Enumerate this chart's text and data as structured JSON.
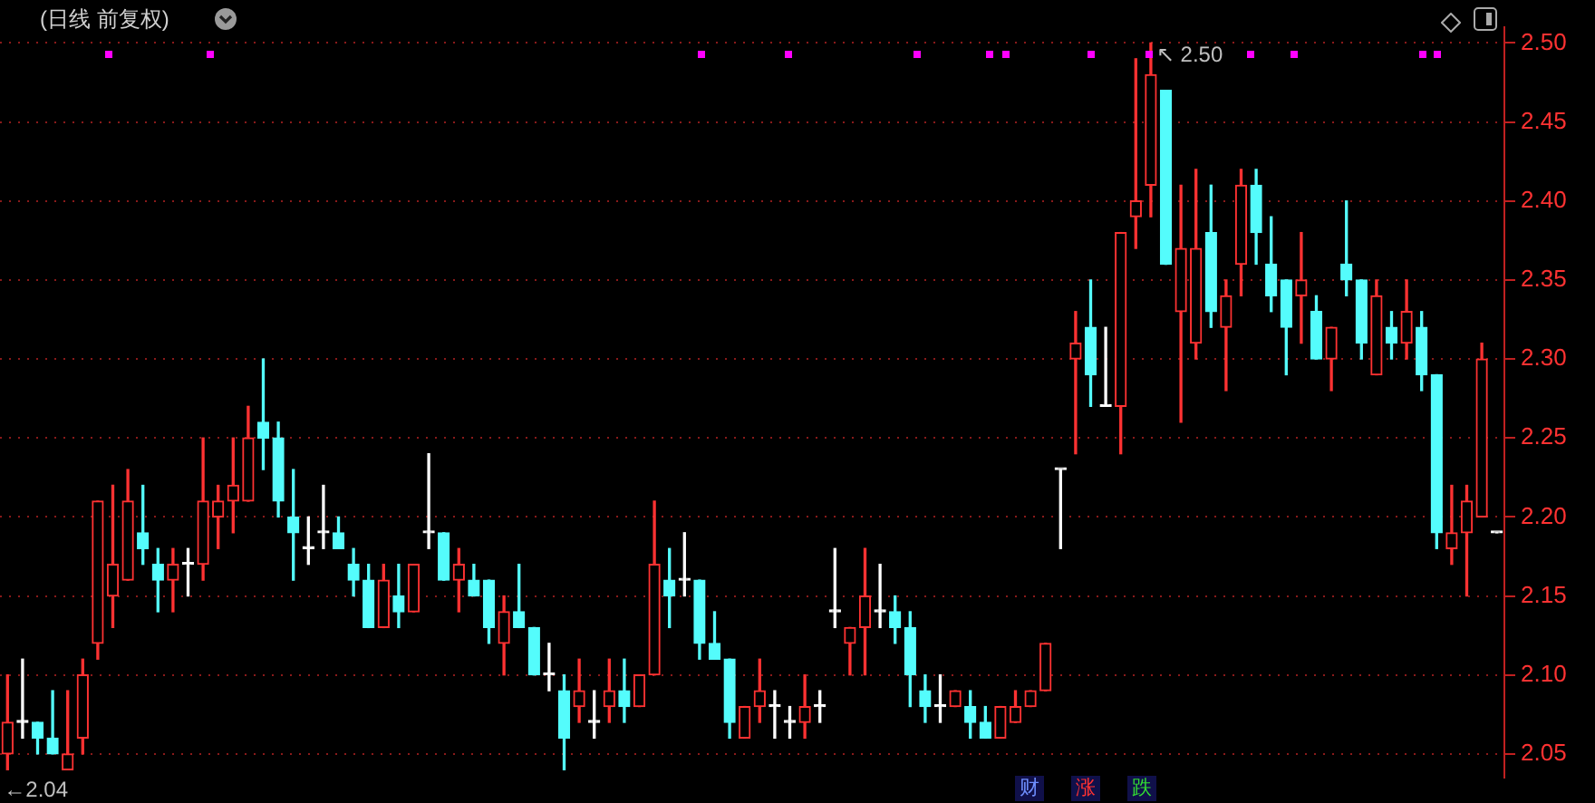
{
  "chart_data": {
    "type": "candlestick",
    "title": "(日线 前复权)",
    "categories": [
      null,
      null,
      null,
      null,
      null,
      null,
      null,
      null,
      null,
      null,
      null,
      null,
      null,
      null,
      null,
      null,
      null,
      null,
      null,
      null,
      null,
      null,
      null,
      null,
      null,
      null,
      null,
      null,
      null,
      null,
      null,
      null,
      null,
      null,
      null,
      null,
      null,
      null,
      null,
      null,
      null,
      null,
      null,
      null,
      null,
      null,
      null,
      null,
      null,
      null,
      null,
      null,
      null,
      null,
      null,
      null,
      null,
      null,
      null,
      null,
      null,
      null,
      null,
      null,
      null,
      null,
      null,
      null,
      null,
      null,
      null,
      null,
      null,
      null,
      null,
      null,
      null,
      null,
      null,
      null,
      null,
      null,
      null,
      null,
      null,
      null,
      null,
      null,
      null,
      null,
      null,
      null,
      null,
      null,
      null,
      null,
      null,
      null,
      null,
      null
    ],
    "ohlc": [
      [
        2.05,
        2.1,
        2.04,
        2.07
      ],
      [
        2.07,
        2.11,
        2.06,
        2.07
      ],
      [
        2.07,
        2.07,
        2.05,
        2.06
      ],
      [
        2.06,
        2.09,
        2.05,
        2.05
      ],
      [
        2.04,
        2.09,
        2.04,
        2.05
      ],
      [
        2.06,
        2.11,
        2.05,
        2.1
      ],
      [
        2.12,
        2.21,
        2.11,
        2.21
      ],
      [
        2.15,
        2.22,
        2.13,
        2.17
      ],
      [
        2.16,
        2.23,
        2.16,
        2.21
      ],
      [
        2.19,
        2.22,
        2.17,
        2.18
      ],
      [
        2.17,
        2.18,
        2.14,
        2.16
      ],
      [
        2.16,
        2.18,
        2.14,
        2.17
      ],
      [
        2.17,
        2.18,
        2.15,
        2.17
      ],
      [
        2.17,
        2.25,
        2.16,
        2.21
      ],
      [
        2.2,
        2.22,
        2.18,
        2.21
      ],
      [
        2.21,
        2.25,
        2.19,
        2.22
      ],
      [
        2.21,
        2.27,
        2.21,
        2.25
      ],
      [
        2.26,
        2.3,
        2.23,
        2.25
      ],
      [
        2.25,
        2.26,
        2.2,
        2.21
      ],
      [
        2.2,
        2.23,
        2.16,
        2.19
      ],
      [
        2.18,
        2.2,
        2.17,
        2.18
      ],
      [
        2.19,
        2.22,
        2.18,
        2.19
      ],
      [
        2.19,
        2.2,
        2.18,
        2.18
      ],
      [
        2.17,
        2.18,
        2.15,
        2.16
      ],
      [
        2.16,
        2.17,
        2.13,
        2.13
      ],
      [
        2.13,
        2.17,
        2.13,
        2.16
      ],
      [
        2.15,
        2.17,
        2.13,
        2.14
      ],
      [
        2.14,
        2.17,
        2.14,
        2.17
      ],
      [
        2.19,
        2.24,
        2.18,
        2.19
      ],
      [
        2.19,
        2.19,
        2.16,
        2.16
      ],
      [
        2.16,
        2.18,
        2.14,
        2.17
      ],
      [
        2.16,
        2.17,
        2.15,
        2.15
      ],
      [
        2.16,
        2.16,
        2.12,
        2.13
      ],
      [
        2.12,
        2.15,
        2.1,
        2.14
      ],
      [
        2.14,
        2.17,
        2.13,
        2.13
      ],
      [
        2.13,
        2.13,
        2.1,
        2.1
      ],
      [
        2.1,
        2.12,
        2.09,
        2.1
      ],
      [
        2.09,
        2.1,
        2.04,
        2.06
      ],
      [
        2.08,
        2.11,
        2.07,
        2.09
      ],
      [
        2.07,
        2.09,
        2.06,
        2.07
      ],
      [
        2.08,
        2.11,
        2.07,
        2.09
      ],
      [
        2.09,
        2.11,
        2.07,
        2.08
      ],
      [
        2.08,
        2.1,
        2.08,
        2.1
      ],
      [
        2.1,
        2.21,
        2.1,
        2.17
      ],
      [
        2.16,
        2.18,
        2.13,
        2.15
      ],
      [
        2.16,
        2.19,
        2.15,
        2.16
      ],
      [
        2.16,
        2.16,
        2.11,
        2.12
      ],
      [
        2.12,
        2.14,
        2.11,
        2.11
      ],
      [
        2.11,
        2.11,
        2.06,
        2.07
      ],
      [
        2.06,
        2.08,
        2.06,
        2.08
      ],
      [
        2.08,
        2.11,
        2.07,
        2.09
      ],
      [
        2.08,
        2.09,
        2.06,
        2.08
      ],
      [
        2.07,
        2.08,
        2.06,
        2.07
      ],
      [
        2.07,
        2.1,
        2.06,
        2.08
      ],
      [
        2.08,
        2.09,
        2.07,
        2.08
      ],
      [
        2.14,
        2.18,
        2.13,
        2.14
      ],
      [
        2.12,
        2.13,
        2.1,
        2.13
      ],
      [
        2.13,
        2.18,
        2.1,
        2.15
      ],
      [
        2.14,
        2.17,
        2.13,
        2.14
      ],
      [
        2.14,
        2.15,
        2.12,
        2.13
      ],
      [
        2.13,
        2.14,
        2.08,
        2.1
      ],
      [
        2.09,
        2.1,
        2.07,
        2.08
      ],
      [
        2.08,
        2.1,
        2.07,
        2.08
      ],
      [
        2.08,
        2.09,
        2.08,
        2.09
      ],
      [
        2.08,
        2.09,
        2.06,
        2.07
      ],
      [
        2.07,
        2.08,
        2.06,
        2.06
      ],
      [
        2.06,
        2.08,
        2.06,
        2.08
      ],
      [
        2.07,
        2.09,
        2.07,
        2.08
      ],
      [
        2.08,
        2.09,
        2.08,
        2.09
      ],
      [
        2.09,
        2.12,
        2.09,
        2.12
      ],
      [
        2.23,
        2.23,
        2.18,
        2.23
      ],
      [
        2.3,
        2.33,
        2.24,
        2.31
      ],
      [
        2.32,
        2.35,
        2.27,
        2.29
      ],
      [
        2.27,
        2.32,
        2.27,
        2.27
      ],
      [
        2.27,
        2.38,
        2.24,
        2.38
      ],
      [
        2.39,
        2.49,
        2.37,
        2.4
      ],
      [
        2.41,
        2.5,
        2.39,
        2.48
      ],
      [
        2.47,
        2.47,
        2.36,
        2.36
      ],
      [
        2.33,
        2.41,
        2.26,
        2.37
      ],
      [
        2.31,
        2.42,
        2.3,
        2.37
      ],
      [
        2.38,
        2.41,
        2.32,
        2.33
      ],
      [
        2.32,
        2.35,
        2.28,
        2.34
      ],
      [
        2.36,
        2.42,
        2.34,
        2.41
      ],
      [
        2.41,
        2.42,
        2.36,
        2.38
      ],
      [
        2.36,
        2.39,
        2.33,
        2.34
      ],
      [
        2.35,
        2.35,
        2.29,
        2.32
      ],
      [
        2.34,
        2.38,
        2.31,
        2.35
      ],
      [
        2.33,
        2.34,
        2.3,
        2.3
      ],
      [
        2.3,
        2.32,
        2.28,
        2.32
      ],
      [
        2.36,
        2.4,
        2.34,
        2.35
      ],
      [
        2.35,
        2.35,
        2.3,
        2.31
      ],
      [
        2.29,
        2.35,
        2.29,
        2.34
      ],
      [
        2.32,
        2.33,
        2.3,
        2.31
      ],
      [
        2.31,
        2.35,
        2.3,
        2.33
      ],
      [
        2.32,
        2.33,
        2.28,
        2.29
      ],
      [
        2.29,
        2.29,
        2.18,
        2.19
      ],
      [
        2.18,
        2.22,
        2.17,
        2.19
      ],
      [
        2.19,
        2.22,
        2.15,
        2.21
      ],
      [
        2.2,
        2.31,
        2.2,
        2.3
      ],
      [
        2.19,
        2.19,
        2.19,
        2.19
      ]
    ],
    "colors": [
      "#ff3232",
      "#ffffff",
      "#54fcfc",
      "#54fcfc",
      "#ff3232",
      "#ff3232",
      "#ff3232",
      "#ff3232",
      "#ff3232",
      "#54fcfc",
      "#54fcfc",
      "#ff3232",
      "#ffffff",
      "#ff3232",
      "#ff3232",
      "#ff3232",
      "#ff3232",
      "#54fcfc",
      "#54fcfc",
      "#54fcfc",
      "#ffffff",
      "#ffffff",
      "#54fcfc",
      "#54fcfc",
      "#54fcfc",
      "#ff3232",
      "#54fcfc",
      "#ff3232",
      "#ffffff",
      "#54fcfc",
      "#ff3232",
      "#54fcfc",
      "#54fcfc",
      "#ff3232",
      "#54fcfc",
      "#54fcfc",
      "#ffffff",
      "#54fcfc",
      "#ff3232",
      "#ffffff",
      "#ff3232",
      "#54fcfc",
      "#ff3232",
      "#ff3232",
      "#54fcfc",
      "#ffffff",
      "#54fcfc",
      "#54fcfc",
      "#54fcfc",
      "#ff3232",
      "#ff3232",
      "#ffffff",
      "#ffffff",
      "#ff3232",
      "#ffffff",
      "#ffffff",
      "#ff3232",
      "#ff3232",
      "#ffffff",
      "#54fcfc",
      "#54fcfc",
      "#54fcfc",
      "#ffffff",
      "#ff3232",
      "#54fcfc",
      "#54fcfc",
      "#ff3232",
      "#ff3232",
      "#ff3232",
      "#ff3232",
      "#ffffff",
      "#ff3232",
      "#54fcfc",
      "#ffffff",
      "#ff3232",
      "#ff3232",
      "#ff3232",
      "#54fcfc",
      "#ff3232",
      "#ff3232",
      "#54fcfc",
      "#ff3232",
      "#ff3232",
      "#54fcfc",
      "#54fcfc",
      "#54fcfc",
      "#ff3232",
      "#54fcfc",
      "#ff3232",
      "#54fcfc",
      "#54fcfc",
      "#ff3232",
      "#54fcfc",
      "#ff3232",
      "#54fcfc",
      "#54fcfc",
      "#ff3232",
      "#ff3232",
      "#ff3232",
      "#ffffff"
    ],
    "ylim": [
      2.035,
      2.51
    ],
    "yticks": [
      {
        "value": 2.05,
        "label": "2.05"
      },
      {
        "value": 2.1,
        "label": "2.10"
      },
      {
        "value": 2.15,
        "label": "2.15"
      },
      {
        "value": 2.2,
        "label": "2.20"
      },
      {
        "value": 2.25,
        "label": "2.25"
      },
      {
        "value": 2.3,
        "label": "2.30"
      },
      {
        "value": 2.35,
        "label": "2.35"
      },
      {
        "value": 2.4,
        "label": "2.40"
      },
      {
        "value": 2.45,
        "label": "2.45"
      },
      {
        "value": 2.5,
        "label": "2.50"
      }
    ],
    "grid": "y",
    "legend": false,
    "tick_labels": "y",
    "annotations": [
      "←2.04",
      "↖ 2.50",
      "财",
      "涨",
      "跌"
    ]
  }
}
